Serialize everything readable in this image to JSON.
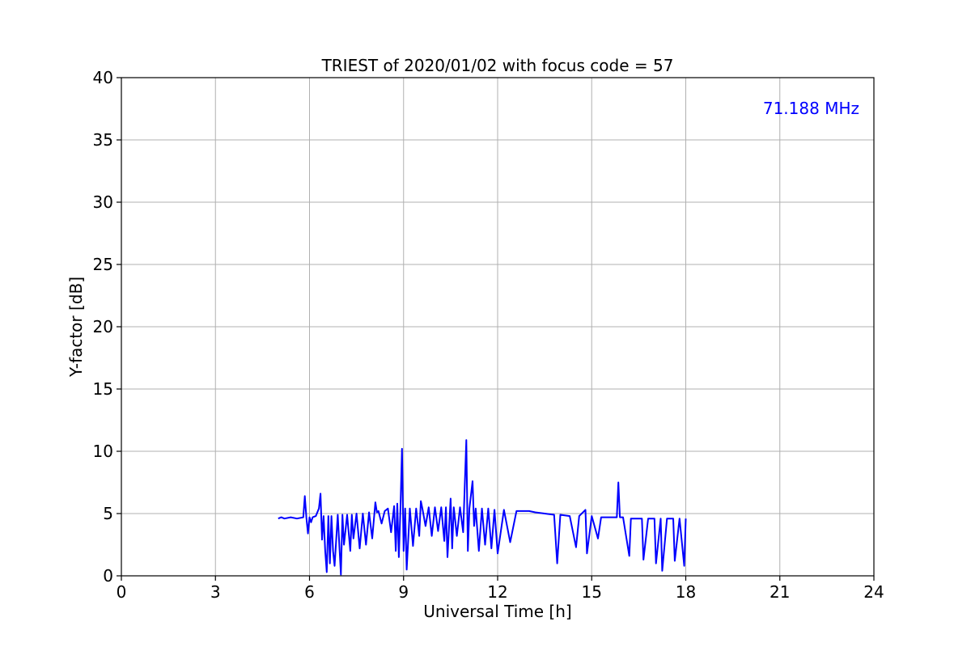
{
  "chart_data": {
    "type": "line",
    "title": "TRIEST of 2020/01/02 with focus code = 57",
    "xlabel": "Universal Time [h]",
    "ylabel": "Y-factor [dB]",
    "xlim": [
      0,
      24
    ],
    "ylim": [
      0,
      40
    ],
    "xticks": [
      0,
      3,
      6,
      9,
      12,
      15,
      18,
      21,
      24
    ],
    "yticks": [
      0,
      5,
      10,
      15,
      20,
      25,
      30,
      35,
      40
    ],
    "grid": true,
    "line_color": "#0000ff",
    "annotation": {
      "text": "71.188 MHz",
      "color": "#0000ff",
      "position": "top-right"
    },
    "series": [
      {
        "x": [
          5.0,
          5.1,
          5.2,
          5.4,
          5.6,
          5.8,
          5.85,
          5.9,
          5.95,
          6.0,
          6.05,
          6.1,
          6.2,
          6.3,
          6.35,
          6.4,
          6.45,
          6.5,
          6.55,
          6.6,
          6.65,
          6.7,
          6.75,
          6.8,
          6.9,
          7.0,
          7.05,
          7.1,
          7.2,
          7.3,
          7.35,
          7.4,
          7.5,
          7.6,
          7.7,
          7.8,
          7.9,
          8.0,
          8.1,
          8.15,
          8.2,
          8.3,
          8.4,
          8.5,
          8.6,
          8.7,
          8.75,
          8.8,
          8.85,
          8.9,
          8.95,
          9.0,
          9.05,
          9.1,
          9.2,
          9.3,
          9.4,
          9.5,
          9.55,
          9.6,
          9.7,
          9.8,
          9.9,
          10.0,
          10.1,
          10.2,
          10.3,
          10.35,
          10.4,
          10.5,
          10.55,
          10.6,
          10.7,
          10.8,
          10.9,
          11.0,
          11.05,
          11.1,
          11.2,
          11.25,
          11.3,
          11.4,
          11.5,
          11.6,
          11.7,
          11.8,
          11.9,
          12.0,
          12.2,
          12.4,
          12.6,
          12.8,
          13.0,
          13.2,
          13.5,
          13.8,
          13.9,
          14.0,
          14.3,
          14.5,
          14.6,
          14.8,
          14.85,
          15.0,
          15.2,
          15.3,
          15.5,
          15.8,
          15.85,
          15.9,
          16.0,
          16.2,
          16.25,
          16.4,
          16.6,
          16.65,
          16.8,
          17.0,
          17.05,
          17.2,
          17.25,
          17.4,
          17.6,
          17.65,
          17.8,
          17.95,
          18.0
        ],
        "y": [
          4.6,
          4.7,
          4.6,
          4.7,
          4.6,
          4.7,
          6.4,
          4.7,
          3.4,
          4.7,
          4.3,
          4.7,
          4.8,
          5.4,
          6.6,
          2.9,
          4.8,
          2.0,
          0.3,
          4.8,
          1.0,
          4.8,
          2.0,
          0.8,
          4.9,
          0.1,
          4.9,
          2.5,
          4.9,
          2.0,
          4.9,
          3.0,
          5.0,
          2.2,
          5.0,
          2.5,
          5.1,
          3.0,
          5.9,
          5.1,
          5.2,
          4.2,
          5.2,
          5.4,
          3.5,
          5.6,
          2.0,
          5.8,
          1.5,
          5.4,
          10.2,
          2.0,
          5.4,
          0.5,
          5.4,
          2.4,
          5.4,
          3.2,
          6.0,
          5.4,
          4.0,
          5.5,
          3.2,
          5.5,
          3.6,
          5.5,
          2.8,
          5.5,
          1.5,
          6.2,
          2.2,
          5.5,
          3.2,
          5.5,
          3.5,
          10.9,
          2.0,
          5.4,
          7.6,
          4.0,
          5.4,
          2.0,
          5.4,
          2.5,
          5.4,
          2.2,
          5.3,
          1.8,
          5.3,
          2.7,
          5.2,
          5.2,
          5.2,
          5.1,
          5.0,
          4.9,
          1.0,
          4.9,
          4.8,
          2.3,
          4.8,
          5.3,
          1.8,
          4.8,
          3.0,
          4.7,
          4.7,
          4.7,
          7.5,
          4.7,
          4.7,
          1.6,
          4.6,
          4.6,
          4.6,
          1.3,
          4.6,
          4.6,
          1.0,
          4.6,
          0.4,
          4.6,
          4.6,
          1.2,
          4.6,
          0.8,
          4.6
        ]
      }
    ]
  }
}
